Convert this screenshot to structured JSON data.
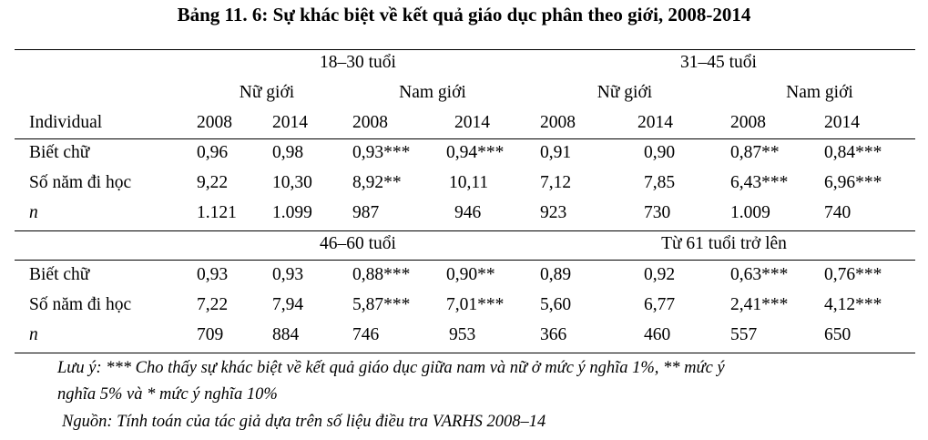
{
  "title": "Bảng 11. 6: Sự khác biệt về kết quả giáo dục phân theo giới, 2008-2014",
  "groups_top": {
    "left": "18–30 tuổi",
    "right": "31–45 tuổi"
  },
  "groups_bottom": {
    "left": "46–60 tuổi",
    "right": "Từ 61 tuổi trở lên"
  },
  "gender": {
    "female": "Nữ giới",
    "male": "Nam giới"
  },
  "row_header": "Individual",
  "years": [
    "2008",
    "2014",
    "2008",
    "2014",
    "2008",
    "2014",
    "2008",
    "2014"
  ],
  "rows_top": [
    {
      "label": "Biết chữ",
      "values": [
        "0,96",
        "0,98",
        "0,93***",
        "0,94***",
        "0,91",
        "0,90",
        "0,87**",
        "0,84***"
      ]
    },
    {
      "label": "Số năm đi học",
      "values": [
        "9,22",
        "10,30",
        "8,92**",
        "10,11",
        "7,12",
        "7,85",
        "6,43***",
        "6,96***"
      ]
    },
    {
      "label": "n",
      "values": [
        "1.121",
        "1.099",
        "987",
        "946",
        "923",
        "730",
        "1.009",
        "740"
      ]
    }
  ],
  "rows_bottom": [
    {
      "label": "Biết chữ",
      "values": [
        "0,93",
        "0,93",
        "0,88***",
        "0,90**",
        "0,89",
        "0,92",
        "0,63***",
        "0,76***"
      ]
    },
    {
      "label": "Số năm đi học",
      "values": [
        "7,22",
        "7,94",
        "5,87***",
        "7,01***",
        "5,60",
        "6,77",
        "2,41***",
        "4,12***"
      ]
    },
    {
      "label": "n",
      "values": [
        "709",
        "884",
        "746",
        "953",
        "366",
        "460",
        "557",
        "650"
      ]
    }
  ],
  "notes": {
    "line1": "Lưu ý: *** Cho thấy sự khác biệt về kết quả giáo dục giữa nam và nữ ở mức ý nghĩa 1%, ** mức ý",
    "line2": "nghĩa 5% và  * mức ý nghĩa 10%",
    "source": "Nguồn: Tính toán của tác giả dựa trên số liệu điều tra  VARHS 2008–14"
  }
}
